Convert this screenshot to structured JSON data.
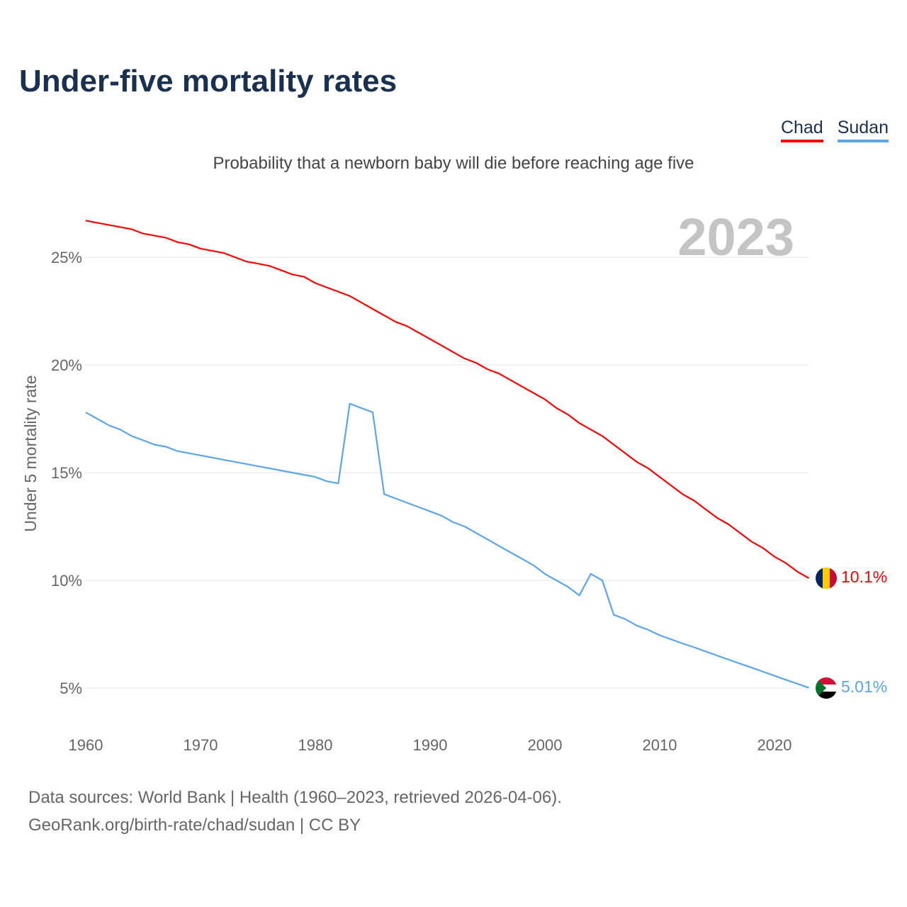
{
  "title": "Under-five mortality rates",
  "subtitle": "Probability that a newborn baby will die before reaching age five",
  "legend": [
    {
      "label": "Chad",
      "color": "#ff0000"
    },
    {
      "label": "Sudan",
      "color": "#5aa5ee"
    }
  ],
  "source_line1": "Data sources: World Bank | Health (1960–2023, retrieved 2026-04-06).",
  "source_line2": "GeoRank.org/birth-rate/chad/sudan | CC BY",
  "chart_data": {
    "type": "line",
    "title": "Under-five mortality rates",
    "ylabel": "Under 5 mortality rate",
    "xlabel": "",
    "year_label": "2023",
    "xlim": [
      1960,
      2023
    ],
    "ylim": [
      3.5,
      28
    ],
    "xticks": [
      1960,
      1970,
      1980,
      1990,
      2000,
      2010,
      2020
    ],
    "yticks": [
      5,
      10,
      15,
      20,
      25
    ],
    "ytick_labels": [
      "5%",
      "10%",
      "15%",
      "20%",
      "25%"
    ],
    "grid": true,
    "x_start": 1960,
    "series": [
      {
        "name": "Chad",
        "color": "#ff0000",
        "end_label": "10.1%",
        "flag": "chad",
        "values": [
          26.7,
          26.6,
          26.5,
          26.4,
          26.3,
          26.1,
          26.0,
          25.9,
          25.7,
          25.6,
          25.4,
          25.3,
          25.2,
          25.0,
          24.8,
          24.7,
          24.6,
          24.4,
          24.2,
          24.1,
          23.8,
          23.6,
          23.4,
          23.2,
          22.9,
          22.6,
          22.3,
          22.0,
          21.8,
          21.5,
          21.2,
          20.9,
          20.6,
          20.3,
          20.1,
          19.8,
          19.6,
          19.3,
          19.0,
          18.7,
          18.4,
          18.0,
          17.7,
          17.3,
          17.0,
          16.7,
          16.3,
          15.9,
          15.5,
          15.2,
          14.8,
          14.4,
          14.0,
          13.7,
          13.3,
          12.9,
          12.6,
          12.2,
          11.8,
          11.5,
          11.1,
          10.8,
          10.4,
          10.1
        ]
      },
      {
        "name": "Sudan",
        "color": "#5aa5ee",
        "end_label": "5.01%",
        "flag": "sudan",
        "values": [
          17.8,
          17.5,
          17.2,
          17.0,
          16.7,
          16.5,
          16.3,
          16.2,
          16.0,
          15.9,
          15.8,
          15.7,
          15.6,
          15.5,
          15.4,
          15.3,
          15.2,
          15.1,
          15.0,
          14.9,
          14.8,
          14.6,
          14.5,
          18.2,
          18.0,
          17.8,
          14.0,
          13.8,
          13.6,
          13.4,
          13.2,
          13.0,
          12.7,
          12.5,
          12.2,
          11.9,
          11.6,
          11.3,
          11.0,
          10.7,
          10.3,
          10.0,
          9.7,
          9.3,
          10.3,
          10.0,
          8.4,
          8.2,
          7.9,
          7.7,
          7.45,
          7.26,
          7.07,
          6.89,
          6.7,
          6.51,
          6.32,
          6.13,
          5.95,
          5.76,
          5.57,
          5.38,
          5.2,
          5.01
        ]
      }
    ]
  }
}
